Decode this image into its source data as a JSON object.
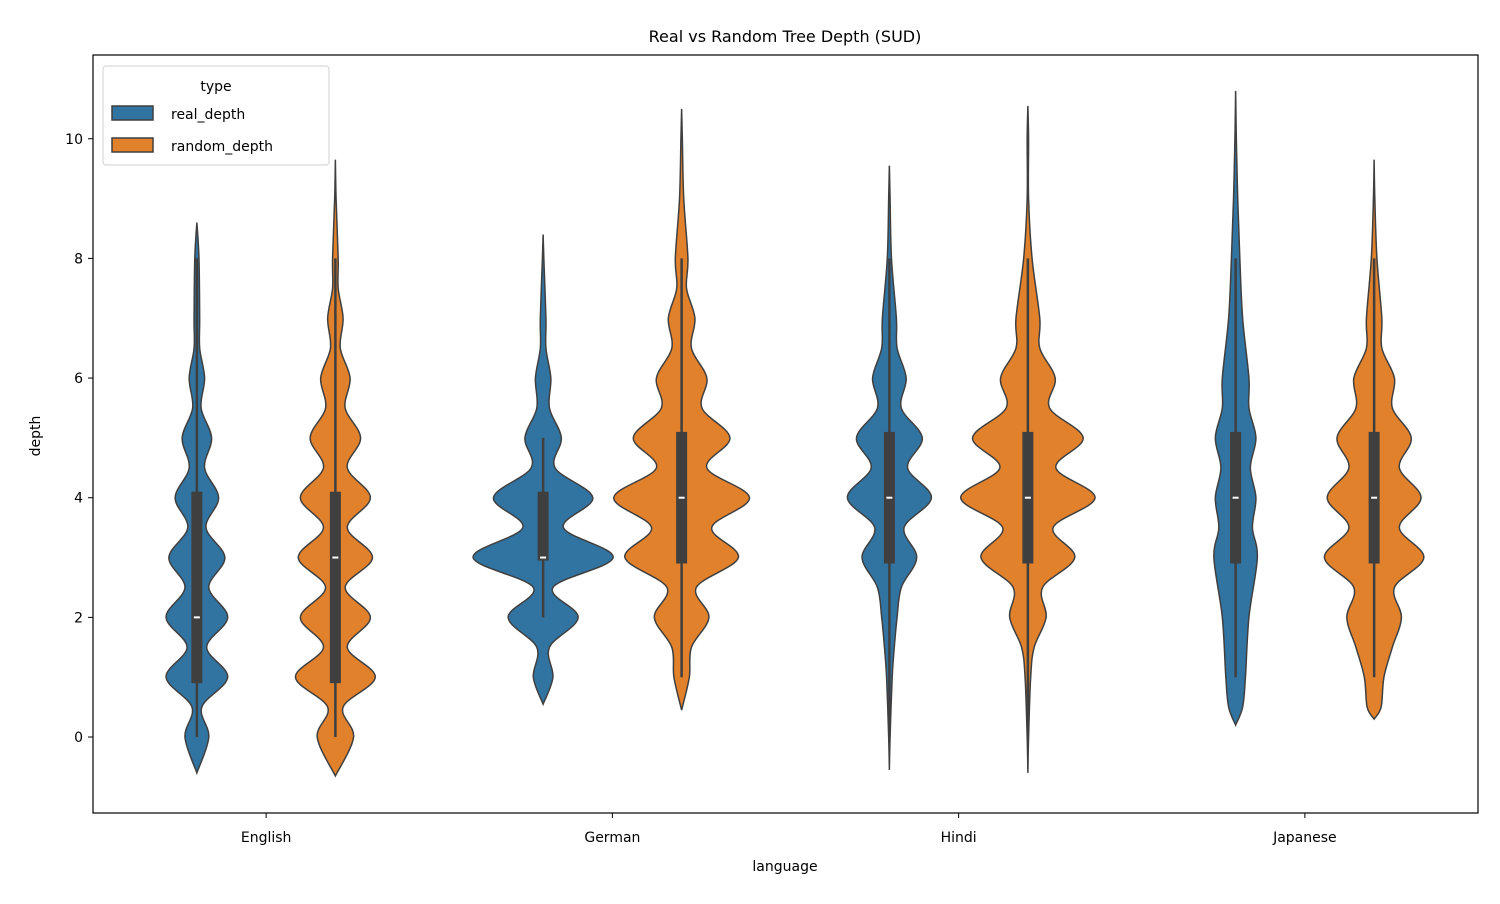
{
  "chart_data": {
    "type": "violin",
    "title": "Real vs Random Tree Depth (SUD)",
    "xlabel": "language",
    "ylabel": "depth",
    "categories": [
      "English",
      "German",
      "Hindi",
      "Japanese"
    ],
    "ylim": [
      -1.27,
      11.4
    ],
    "yticks": [
      0,
      2,
      4,
      6,
      8,
      10
    ],
    "grid": false,
    "legend": {
      "title": "type",
      "placement": "top-left"
    },
    "series": [
      {
        "name": "real_depth",
        "color": "#3274a1",
        "violins": [
          {
            "box": {
              "whisker_low": 0,
              "q1": 0.9,
              "median": 2,
              "q3": 4.1,
              "whisker_high": 8
            },
            "density_profile": [
              [
                -0.6,
                0
              ],
              [
                0,
                0.17
              ],
              [
                0.5,
                0.07
              ],
              [
                1,
                0.44
              ],
              [
                1.5,
                0.14
              ],
              [
                2,
                0.44
              ],
              [
                2.5,
                0.17
              ],
              [
                3,
                0.4
              ],
              [
                3.5,
                0.13
              ],
              [
                4,
                0.31
              ],
              [
                4.5,
                0.11
              ],
              [
                5,
                0.21
              ],
              [
                5.5,
                0.06
              ],
              [
                6,
                0.11
              ],
              [
                6.5,
                0.04
              ],
              [
                7,
                0.04
              ],
              [
                8,
                0.03
              ],
              [
                8.6,
                0
              ]
            ]
          },
          {
            "box": {
              "whisker_low": 2,
              "q1": 2.95,
              "median": 3,
              "q3": 4.1,
              "whisker_high": 5
            },
            "density_profile": [
              [
                0.55,
                0
              ],
              [
                1,
                0.14
              ],
              [
                1.5,
                0.09
              ],
              [
                2,
                0.5
              ],
              [
                2.5,
                0.14
              ],
              [
                3,
                1
              ],
              [
                3.5,
                0.29
              ],
              [
                4,
                0.71
              ],
              [
                4.5,
                0.17
              ],
              [
                5,
                0.26
              ],
              [
                5.5,
                0.09
              ],
              [
                6,
                0.11
              ],
              [
                6.5,
                0.04
              ],
              [
                7,
                0.04
              ],
              [
                8,
                0.01
              ],
              [
                8.4,
                0
              ]
            ]
          },
          {
            "box": {
              "whisker_low": 0,
              "q1": 2.9,
              "median": 4,
              "q3": 5.1,
              "whisker_high": 8
            },
            "density_profile": [
              [
                -0.55,
                0
              ],
              [
                0,
                0.01
              ],
              [
                1,
                0.04
              ],
              [
                1.5,
                0.07
              ],
              [
                2,
                0.11
              ],
              [
                2.5,
                0.17
              ],
              [
                3,
                0.39
              ],
              [
                3.5,
                0.21
              ],
              [
                4,
                0.6
              ],
              [
                4.5,
                0.26
              ],
              [
                5,
                0.47
              ],
              [
                5.5,
                0.17
              ],
              [
                6,
                0.24
              ],
              [
                6.5,
                0.11
              ],
              [
                7,
                0.1
              ],
              [
                8,
                0.03
              ],
              [
                9,
                0.01
              ],
              [
                9.55,
                0
              ]
            ]
          },
          {
            "box": {
              "whisker_low": 1,
              "q1": 2.9,
              "median": 4,
              "q3": 5.1,
              "whisker_high": 8
            },
            "density_profile": [
              [
                0.2,
                0
              ],
              [
                0.5,
                0.1
              ],
              [
                1,
                0.14
              ],
              [
                2,
                0.19
              ],
              [
                3,
                0.31
              ],
              [
                3.5,
                0.24
              ],
              [
                4,
                0.29
              ],
              [
                4.5,
                0.21
              ],
              [
                5,
                0.29
              ],
              [
                5.5,
                0.19
              ],
              [
                6,
                0.19
              ],
              [
                7,
                0.1
              ],
              [
                8,
                0.06
              ],
              [
                9,
                0.03
              ],
              [
                10,
                0.01
              ],
              [
                10.8,
                0
              ]
            ]
          }
        ]
      },
      {
        "name": "random_depth",
        "color": "#e1812c",
        "violins": [
          {
            "box": {
              "whisker_low": 0,
              "q1": 0.9,
              "median": 3,
              "q3": 4.1,
              "whisker_high": 8
            },
            "density_profile": [
              [
                -0.65,
                0
              ],
              [
                0,
                0.26
              ],
              [
                0.5,
                0.11
              ],
              [
                1,
                0.57
              ],
              [
                1.5,
                0.17
              ],
              [
                2,
                0.5
              ],
              [
                2.5,
                0.14
              ],
              [
                3,
                0.53
              ],
              [
                3.5,
                0.17
              ],
              [
                4,
                0.5
              ],
              [
                4.5,
                0.17
              ],
              [
                5,
                0.36
              ],
              [
                5.5,
                0.14
              ],
              [
                6,
                0.21
              ],
              [
                6.5,
                0.07
              ],
              [
                7,
                0.11
              ],
              [
                7.5,
                0.04
              ],
              [
                8,
                0.04
              ],
              [
                9,
                0.01
              ],
              [
                9.65,
                0
              ]
            ]
          },
          {
            "box": {
              "whisker_low": 1,
              "q1": 2.9,
              "median": 4,
              "q3": 5.1,
              "whisker_high": 8
            },
            "density_profile": [
              [
                0.45,
                0
              ],
              [
                1,
                0.11
              ],
              [
                1.5,
                0.14
              ],
              [
                2,
                0.39
              ],
              [
                2.5,
                0.21
              ],
              [
                3,
                0.81
              ],
              [
                3.5,
                0.43
              ],
              [
                4,
                0.97
              ],
              [
                4.5,
                0.36
              ],
              [
                5,
                0.69
              ],
              [
                5.5,
                0.29
              ],
              [
                6,
                0.36
              ],
              [
                6.5,
                0.14
              ],
              [
                7,
                0.19
              ],
              [
                7.5,
                0.07
              ],
              [
                8,
                0.09
              ],
              [
                9,
                0.03
              ],
              [
                10,
                0.01
              ],
              [
                10.5,
                0
              ]
            ]
          },
          {
            "box": {
              "whisker_low": 0,
              "q1": 2.9,
              "median": 4,
              "q3": 5.1,
              "whisker_high": 8
            },
            "density_profile": [
              [
                -0.6,
                0
              ],
              [
                0,
                0.01
              ],
              [
                1,
                0.04
              ],
              [
                1.5,
                0.09
              ],
              [
                2,
                0.26
              ],
              [
                2.5,
                0.21
              ],
              [
                3,
                0.67
              ],
              [
                3.5,
                0.36
              ],
              [
                4,
                0.96
              ],
              [
                4.5,
                0.4
              ],
              [
                5,
                0.79
              ],
              [
                5.5,
                0.31
              ],
              [
                6,
                0.39
              ],
              [
                6.5,
                0.17
              ],
              [
                7,
                0.17
              ],
              [
                8,
                0.06
              ],
              [
                9,
                0.01
              ],
              [
                10,
                0.01
              ],
              [
                10.55,
                0
              ]
            ]
          },
          {
            "box": {
              "whisker_low": 1,
              "q1": 2.9,
              "median": 4,
              "q3": 5.1,
              "whisker_high": 8
            },
            "density_profile": [
              [
                0.3,
                0
              ],
              [
                0.5,
                0.1
              ],
              [
                1,
                0.14
              ],
              [
                1.5,
                0.26
              ],
              [
                2,
                0.39
              ],
              [
                2.5,
                0.29
              ],
              [
                3,
                0.71
              ],
              [
                3.5,
                0.36
              ],
              [
                4,
                0.67
              ],
              [
                4.5,
                0.36
              ],
              [
                5,
                0.53
              ],
              [
                5.5,
                0.26
              ],
              [
                6,
                0.29
              ],
              [
                6.5,
                0.11
              ],
              [
                7,
                0.11
              ],
              [
                8,
                0.04
              ],
              [
                9,
                0.01
              ],
              [
                9.65,
                0
              ]
            ]
          }
        ]
      }
    ]
  }
}
